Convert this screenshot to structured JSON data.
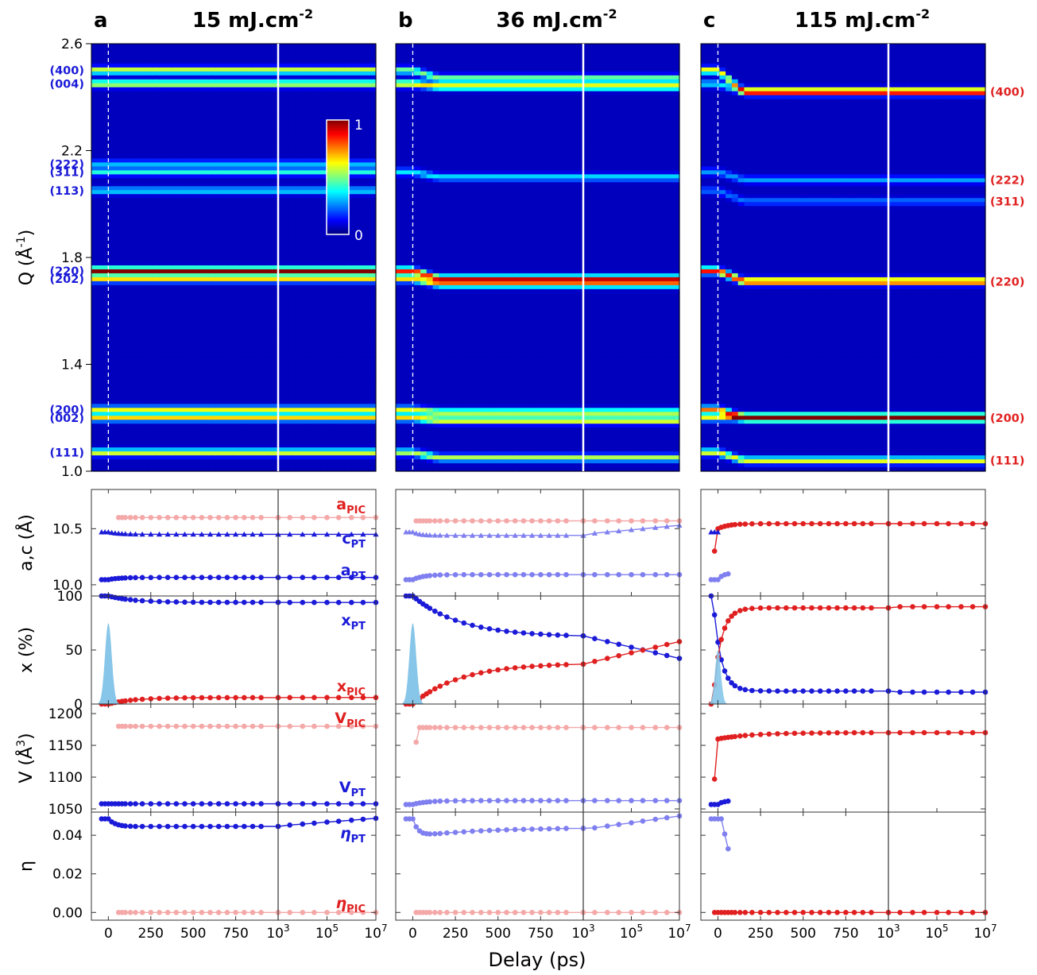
{
  "figure": {
    "xlabel": "Delay (ps)",
    "colorbar_ticks": [
      "1",
      "0"
    ],
    "colors": {
      "pt": "#1a1ad8",
      "pic": "#e02020",
      "pt_light": "#7f7ff0",
      "pic_light": "#f4a8a8",
      "pump": "#87c6e8",
      "sep": "#000000"
    }
  },
  "chart_data": [
    {
      "type": "heatmap",
      "panels": [
        {
          "letter": "a",
          "fluence": "15 mJ.cm",
          "fluence_exp": "-2"
        },
        {
          "letter": "b",
          "fluence": "36 mJ.cm",
          "fluence_exp": "-2"
        },
        {
          "letter": "c",
          "fluence": "115 mJ.cm",
          "fluence_exp": "-2"
        }
      ],
      "ylabel": "Q (Å",
      "ylabel_exp": "-1",
      "ylabel_close": ")",
      "ylim": [
        1.0,
        2.6
      ],
      "yticks": [
        "1.0",
        "1.4",
        "1.8",
        "2.2",
        "2.6"
      ],
      "yticks_values": [
        1.0,
        1.4,
        1.8,
        2.2,
        2.6
      ],
      "left_peaks": [
        {
          "label": "(400)",
          "q": 2.5
        },
        {
          "label": "(004)",
          "q": 2.45
        },
        {
          "label": "(222)",
          "q": 2.15
        },
        {
          "label": "(311)",
          "q": 2.12
        },
        {
          "label": "(113)",
          "q": 2.05
        },
        {
          "label": "(220)",
          "q": 1.75
        },
        {
          "label": "(202)",
          "q": 1.72
        },
        {
          "label": "(200)",
          "q": 1.23
        },
        {
          "label": "(002)",
          "q": 1.2
        },
        {
          "label": "(111)",
          "q": 1.07
        }
      ],
      "right_peaks": [
        {
          "label": "(400)",
          "q": 2.42
        },
        {
          "label": "(222)",
          "q": 2.09
        },
        {
          "label": "(311)",
          "q": 2.01
        },
        {
          "label": "(220)",
          "q": 1.71
        },
        {
          "label": "(200)",
          "q": 1.2
        },
        {
          "label": "(111)",
          "q": 1.04
        }
      ],
      "colorbar_range": [
        0,
        1
      ]
    },
    {
      "type": "line",
      "name": "lattice",
      "ylabel": "a,c (Å)",
      "ylim": [
        9.9,
        10.85
      ],
      "yticks": [
        "10.0",
        "10.5"
      ],
      "yticks_values": [
        10.0,
        10.5
      ],
      "labels": [
        {
          "base": "a",
          "sub": "PIC",
          "color": "pic"
        },
        {
          "base": "c",
          "sub": "PT",
          "color": "pt"
        },
        {
          "base": "a",
          "sub": "PT",
          "color": "pt"
        }
      ]
    },
    {
      "type": "line",
      "name": "fraction",
      "ylabel": "x (%)",
      "ylim": [
        0,
        100
      ],
      "yticks": [
        "0",
        "50",
        "100"
      ],
      "yticks_values": [
        0,
        50,
        100
      ],
      "labels": [
        {
          "base": "x",
          "sub": "PT",
          "color": "pt"
        },
        {
          "base": "x",
          "sub": "PIC",
          "color": "pic"
        }
      ]
    },
    {
      "type": "line",
      "name": "volume",
      "ylabel": "V (Å",
      "ylabel_exp": "3",
      "ylabel_close": ")",
      "ylim": [
        1045,
        1215
      ],
      "yticks": [
        "1050",
        "1100",
        "1150",
        "1200"
      ],
      "yticks_values": [
        1050,
        1100,
        1150,
        1200
      ],
      "labels": [
        {
          "base": "V",
          "sub": "PIC",
          "color": "pic"
        },
        {
          "base": "V",
          "sub": "PT",
          "color": "pt"
        }
      ]
    },
    {
      "type": "line",
      "name": "distortion",
      "ylabel": "η",
      "ylim": [
        -0.004,
        0.052
      ],
      "yticks": [
        "0.00",
        "0.02",
        "0.04"
      ],
      "yticks_values": [
        0.0,
        0.02,
        0.04
      ],
      "labels": [
        {
          "base": "η",
          "sub": "PT",
          "color": "pt"
        },
        {
          "base": "η",
          "sub": "PIC",
          "color": "pic"
        }
      ]
    },
    {
      "type": "axis",
      "x_linear_ticks": [
        "0",
        "250",
        "500",
        "750"
      ],
      "x_linear_values": [
        0,
        250,
        500,
        750
      ],
      "x_linear_range": [
        -100,
        1000
      ],
      "x_log_ticks": [
        {
          "base": "10",
          "exp": "3"
        },
        {
          "base": "10",
          "exp": "5"
        },
        {
          "base": "10",
          "exp": "7"
        }
      ],
      "x_log_values": [
        3,
        5,
        7
      ],
      "x_log_range": [
        3,
        7
      ]
    }
  ]
}
